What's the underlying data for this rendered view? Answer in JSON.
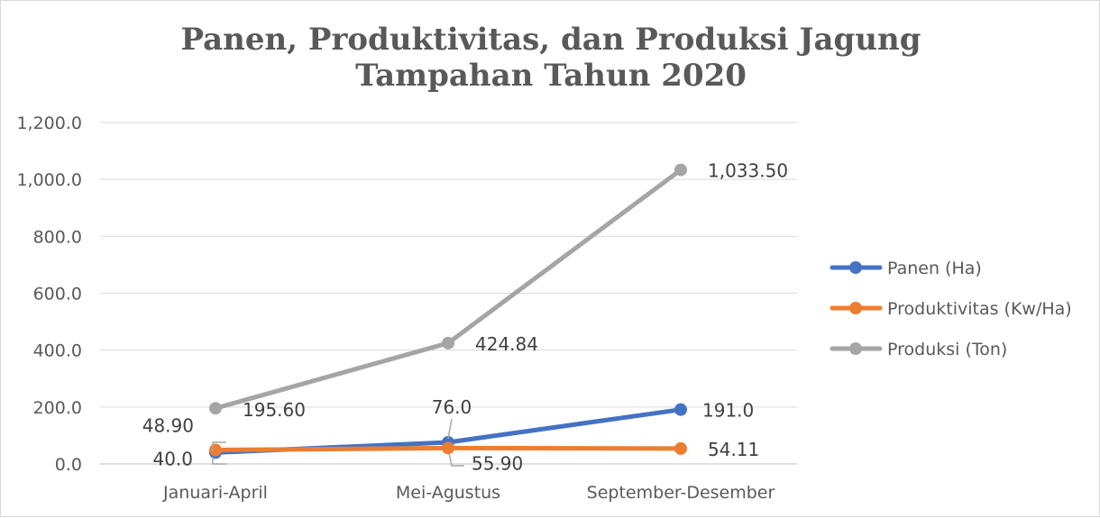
{
  "chart_data": {
    "type": "line",
    "title_lines": [
      "Panen, Produktivitas, dan Produksi Jagung",
      "Tampahan Tahun 2020"
    ],
    "categories": [
      "Januari-April",
      "Mei-Agustus",
      "September-Desember"
    ],
    "ylim": [
      0,
      1200
    ],
    "y_ticks": [
      0,
      200,
      400,
      600,
      800,
      1000,
      1200
    ],
    "y_tick_labels": [
      "0.0",
      "200.0",
      "400.0",
      "600.0",
      "800.0",
      "1,000.0",
      "1,200.0"
    ],
    "grid": true,
    "legend_position": "right",
    "series": [
      {
        "name": "Panen (Ha)",
        "color": "#4472c4",
        "values": [
          40.0,
          76.0,
          191.0
        ],
        "labels": [
          "40.0",
          "76.0",
          "191.0"
        ]
      },
      {
        "name": "Produktivitas (Kw/Ha)",
        "color": "#ed7d31",
        "values": [
          48.9,
          55.9,
          54.11
        ],
        "labels": [
          "48.90",
          "55.90",
          "54.11"
        ]
      },
      {
        "name": "Produksi (Ton)",
        "color": "#a5a5a5",
        "values": [
          195.6,
          424.84,
          1033.5
        ],
        "labels": [
          "195.60",
          "424.84",
          "1,033.50"
        ]
      }
    ]
  }
}
